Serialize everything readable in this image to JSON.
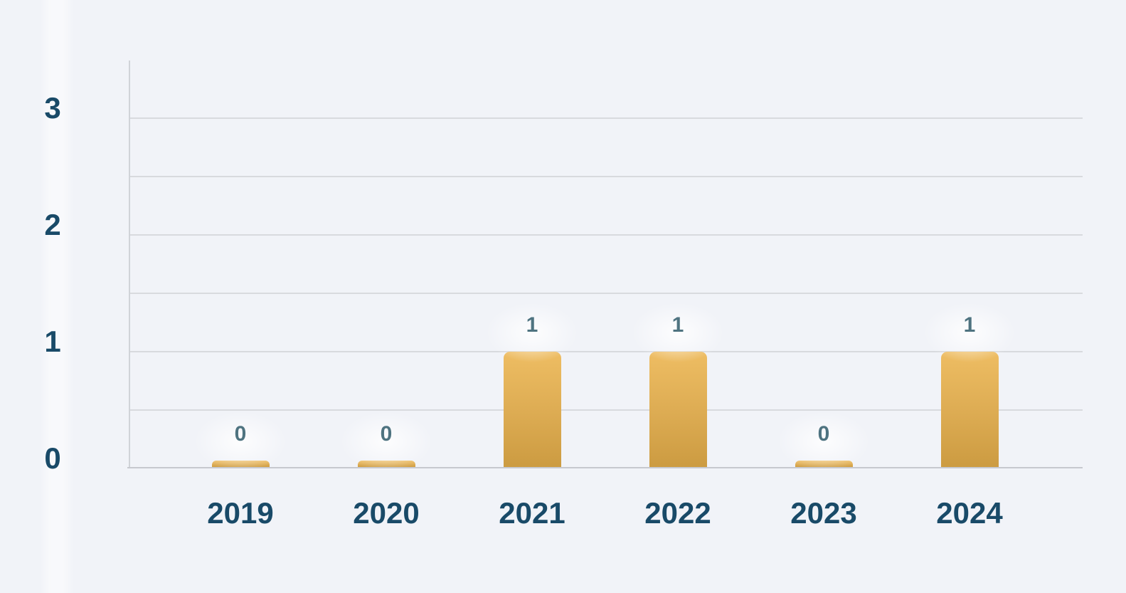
{
  "chart_data": {
    "type": "bar",
    "categories": [
      "2019",
      "2020",
      "2021",
      "2022",
      "2023",
      "2024"
    ],
    "values": [
      0,
      0,
      1,
      1,
      0,
      1
    ],
    "value_labels": [
      "0",
      "0",
      "1",
      "1",
      "0",
      "1"
    ],
    "y_ticks": [
      "0",
      "1",
      "2",
      "3"
    ],
    "y_tick_values": [
      0,
      1,
      2,
      3
    ],
    "ylim": [
      0,
      3.5
    ],
    "grid_interval": 0.5,
    "grid": "horizontal",
    "legend_position": "none",
    "colors": {
      "background": "#F1F3F8",
      "bar_gradient_top": "#EEBD63",
      "bar_gradient_mid": "#DCAB52",
      "bar_gradient_bottom": "#CC9B41",
      "axis_label": "#194A68",
      "value_label": "#4E7380",
      "gridline": "#D8DADE",
      "x_axis_line": "#C7C9CF",
      "y_axis_line": "#D0D3D8",
      "label_glow": "#FFFFFF"
    }
  }
}
